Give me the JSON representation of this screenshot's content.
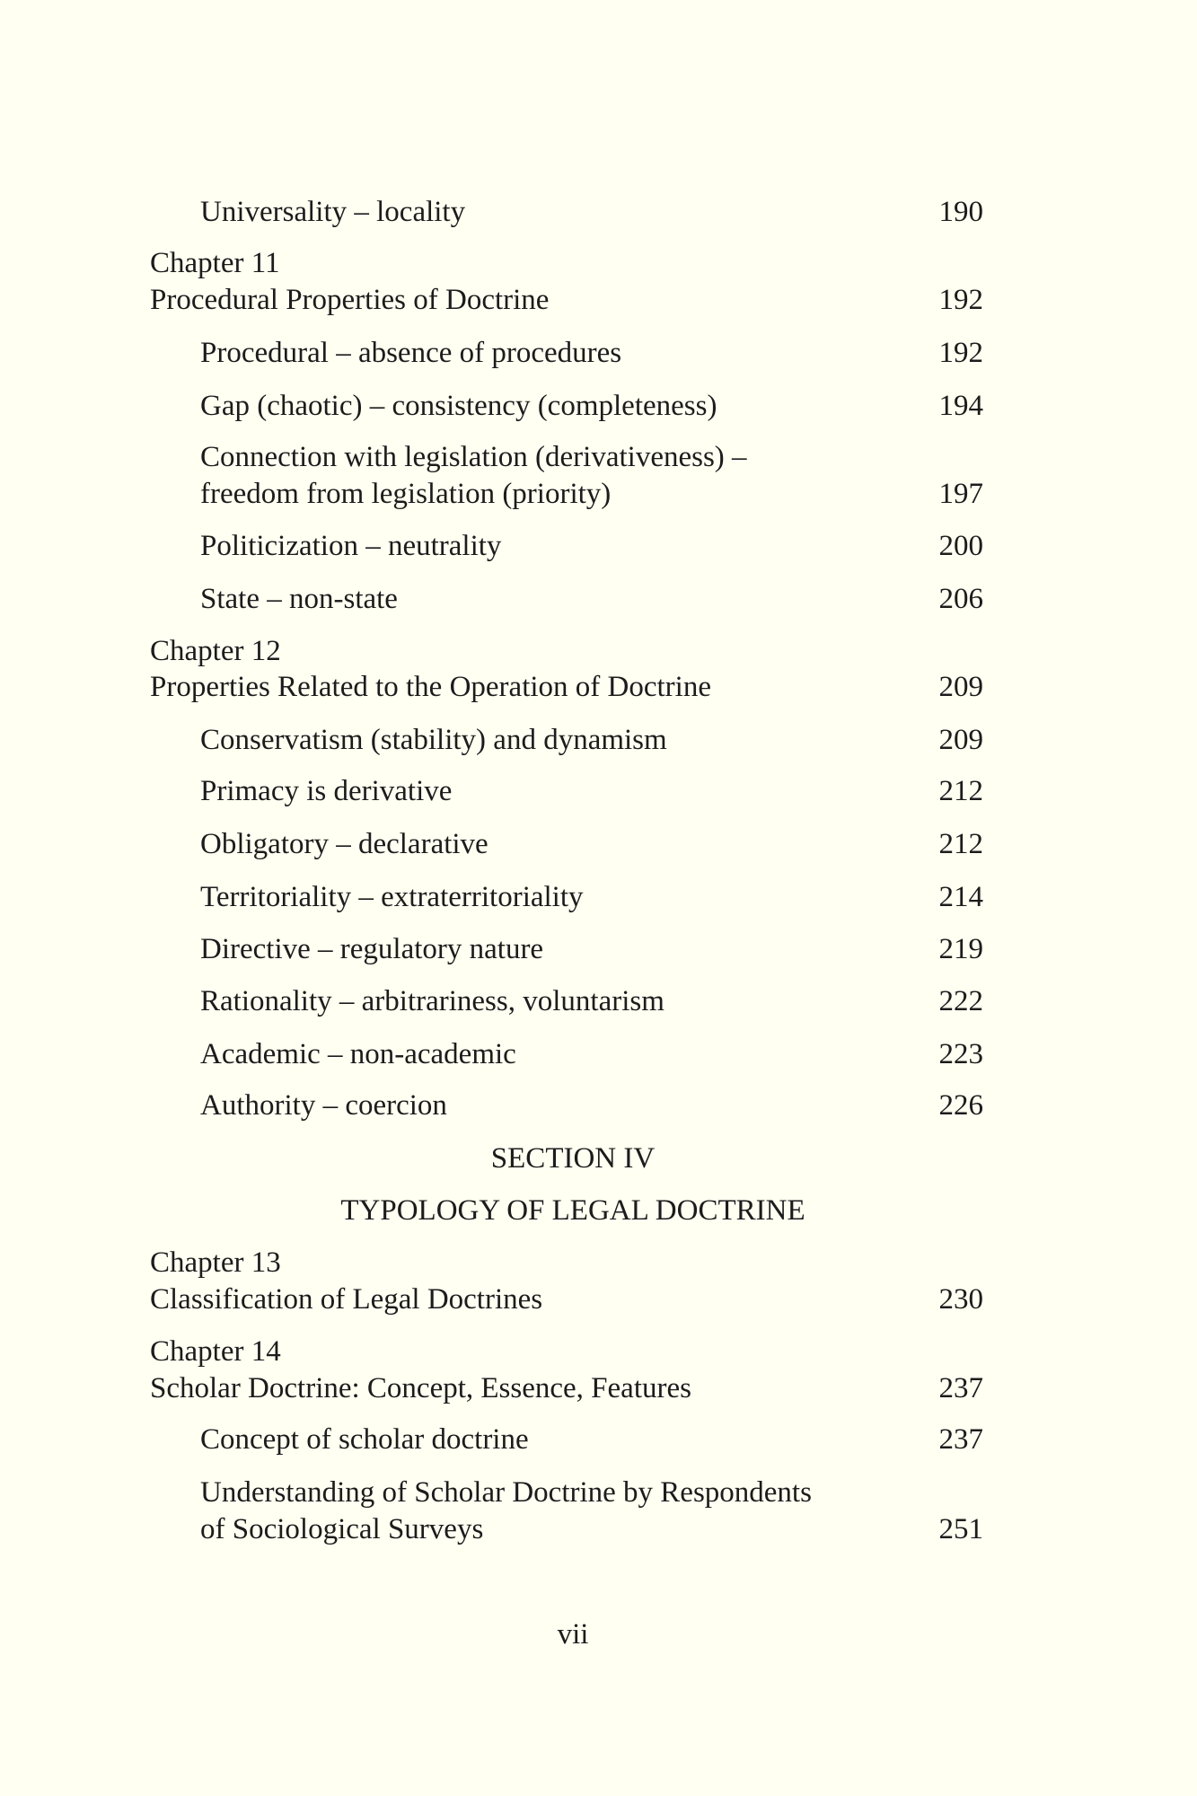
{
  "entries": [
    {
      "text": "Universality – locality",
      "page": "190",
      "level": 1
    },
    {
      "text": "Chapter 11",
      "page": "",
      "level": 0
    },
    {
      "text": "Procedural Properties of Doctrine",
      "page": "192",
      "level": 0
    },
    {
      "text": "Procedural – absence of procedures",
      "page": "192",
      "level": 1
    },
    {
      "text": "Gap (chaotic) – consistency (completeness)",
      "page": "194",
      "level": 1
    },
    {
      "text": "Connection with legislation (derivativeness) –",
      "page": "",
      "level": 1
    },
    {
      "text": "freedom from legislation (priority)",
      "page": "197",
      "level": 1
    },
    {
      "text": "Politicization – neutrality",
      "page": "200",
      "level": 1
    },
    {
      "text": "State – non-state",
      "page": "206",
      "level": 1
    },
    {
      "text": "Chapter 12",
      "page": "",
      "level": 0
    },
    {
      "text": "Properties Related to the Operation of Doctrine",
      "page": "209",
      "level": 0
    },
    {
      "text": "Conservatism (stability) and dynamism",
      "page": "209",
      "level": 1
    },
    {
      "text": "Primacy is derivative",
      "page": "212",
      "level": 1
    },
    {
      "text": "Obligatory – declarative",
      "page": "212",
      "level": 1
    },
    {
      "text": "Territoriality – extraterritoriality",
      "page": "214",
      "level": 1
    },
    {
      "text": "Directive – regulatory nature",
      "page": "219",
      "level": 1
    },
    {
      "text": "Rationality – arbitrariness, voluntarism",
      "page": "222",
      "level": 1
    },
    {
      "text": "Academic – non-academic",
      "page": "223",
      "level": 1
    },
    {
      "text": "Authority – coercion",
      "page": "226",
      "level": 1
    },
    {
      "text": "SECTION IV",
      "page": "",
      "level": "center"
    },
    {
      "text": "TYPOLOGY OF LEGAL DOCTRINE",
      "page": "",
      "level": "center"
    },
    {
      "text": "Chapter 13",
      "page": "",
      "level": 0
    },
    {
      "text": "Classification of Legal Doctrines",
      "page": "230",
      "level": 0
    },
    {
      "text": "Chapter 14",
      "page": "",
      "level": 0
    },
    {
      "text": "Scholar Doctrine: Concept, Essence, Features",
      "page": "237",
      "level": 0
    },
    {
      "text": "Concept of scholar doctrine",
      "page": "237",
      "level": 1
    },
    {
      "text": "Understanding of Scholar Doctrine by Respondents",
      "page": "",
      "level": 1
    },
    {
      "text": "of Sociological Surveys",
      "page": "251",
      "level": 1
    }
  ],
  "page_number": "vii"
}
